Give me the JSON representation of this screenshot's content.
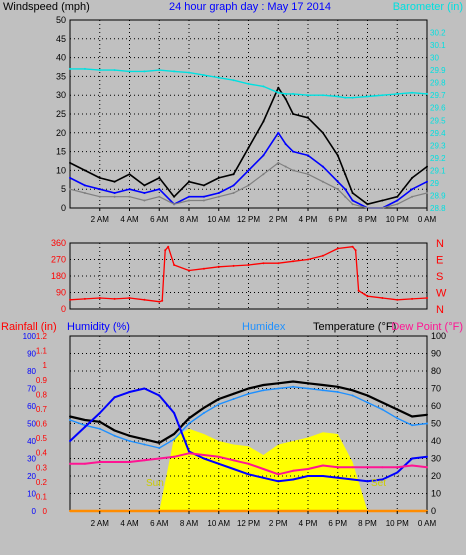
{
  "colors": {
    "background": "#c0c0c0",
    "plot_bg": "#c0c0c0",
    "grid": "#000000",
    "wind_speed": "#000000",
    "wind_avg": "#0000ff",
    "wind_gray": "#808080",
    "barometer": "#00e0e0",
    "direction": "#ff0000",
    "rainfall": "#ff0000",
    "humidity": "#0000ff",
    "humidex": "#1e90ff",
    "temperature": "#000000",
    "dew_point": "#ff1493",
    "solar": "#ffff00",
    "sun_label": "#cccc00",
    "bottom_rain_line": "#ff8c00"
  },
  "chart_data": [
    {
      "type": "line",
      "id": "wind",
      "title": "24 hour graph day : May 17 2014",
      "left_label": "Windspeed (mph)",
      "right_label": "Barometer (in)",
      "ylim": [
        0,
        50
      ],
      "y_ticks": [
        "0",
        "5",
        "10",
        "15",
        "20",
        "25",
        "30",
        "35",
        "40",
        "45",
        "50"
      ],
      "y2lim": [
        28.8,
        30.3
      ],
      "y2_ticks": [
        "28.8",
        "28.9",
        "29",
        "29.1",
        "29.2",
        "29.3",
        "29.4",
        "29.5",
        "29.6",
        "29.7",
        "29.8",
        "29.9",
        "30",
        "30.1",
        "30.2"
      ],
      "x_ticks": [
        "2 AM",
        "4 AM",
        "6 AM",
        "8 AM",
        "10 AM",
        "12 PM",
        "2 PM",
        "4 PM",
        "6 PM",
        "8 PM",
        "10 PM",
        "0 AM"
      ],
      "x": [
        0,
        1,
        2,
        3,
        4,
        5,
        6,
        7,
        8,
        9,
        10,
        11,
        12,
        13,
        14,
        14.5,
        15,
        16,
        17,
        18,
        18.5,
        19,
        20,
        21,
        22,
        23,
        24
      ],
      "series": [
        {
          "key": "gust",
          "values": [
            12,
            10,
            8,
            7,
            9,
            6,
            8,
            3,
            7,
            6,
            8,
            9,
            16,
            23,
            32,
            29,
            25,
            24,
            20,
            14,
            9,
            4,
            1,
            2,
            3,
            8,
            11
          ]
        },
        {
          "key": "average",
          "values": [
            8,
            6,
            5,
            4,
            5,
            4,
            5,
            1,
            3,
            3,
            4,
            6,
            10,
            14,
            20,
            17,
            15,
            14,
            11,
            7,
            5,
            2,
            0,
            0,
            2,
            5,
            7
          ]
        },
        {
          "key": "gray",
          "values": [
            5,
            4,
            3,
            3,
            3,
            2,
            3,
            1,
            2,
            2,
            3,
            4,
            6,
            9,
            12,
            11,
            10,
            9,
            7,
            5,
            3,
            1,
            0,
            0,
            1,
            3,
            4
          ]
        },
        {
          "key": "barometer",
          "axis": "y2",
          "values": [
            29.91,
            29.91,
            29.9,
            29.9,
            29.89,
            29.89,
            29.9,
            29.89,
            29.88,
            29.86,
            29.84,
            29.82,
            29.79,
            29.77,
            29.72,
            29.71,
            29.71,
            29.7,
            29.7,
            29.69,
            29.68,
            29.68,
            29.69,
            29.7,
            29.71,
            29.72,
            29.71
          ]
        }
      ]
    },
    {
      "type": "line",
      "id": "direction",
      "ylim": [
        0,
        360
      ],
      "y_ticks": [
        "0",
        "90",
        "180",
        "270",
        "360"
      ],
      "compass_labels": [
        "N",
        "E",
        "S",
        "W",
        "N"
      ],
      "x": [
        0,
        1,
        2,
        3,
        4,
        5,
        6,
        6.2,
        6.4,
        6.6,
        7,
        8,
        9,
        10,
        11,
        12,
        13,
        14,
        15,
        16,
        17,
        18,
        19,
        19.2,
        19.4,
        19.8,
        20,
        21,
        22,
        23,
        24
      ],
      "series": [
        {
          "key": "direction",
          "values": [
            50,
            55,
            60,
            55,
            60,
            50,
            40,
            45,
            320,
            340,
            240,
            210,
            220,
            230,
            235,
            240,
            250,
            250,
            260,
            270,
            290,
            330,
            340,
            320,
            100,
            80,
            70,
            60,
            50,
            55,
            60
          ]
        }
      ]
    },
    {
      "type": "line",
      "id": "temperature",
      "labels": {
        "rainfall": "Rainfall (in)",
        "humidity": "Humidity (%)",
        "humidex": "Humidex",
        "temperature": "Temperature (°F)",
        "dew_point": "Dew Point (°F)",
        "sunrise": "Sun",
        "sunset": "Set"
      },
      "rain_lim": [
        0,
        1.2
      ],
      "rain_ticks": [
        "0",
        "0.1",
        "0.2",
        "0.3",
        "0.4",
        "0.5",
        "0.6",
        "0.7",
        "0.8",
        "0.9",
        "1",
        "1.1",
        "1.2"
      ],
      "humidity_lim": [
        0,
        100
      ],
      "humidity_ticks": [
        "0",
        "10",
        "20",
        "30",
        "40",
        "50",
        "60",
        "70",
        "80",
        "90",
        "100"
      ],
      "temp_lim": [
        0,
        100
      ],
      "temp_ticks": [
        "0",
        "10",
        "20",
        "30",
        "40",
        "50",
        "60",
        "70",
        "80",
        "90",
        "100"
      ],
      "x_ticks": [
        "2 AM",
        "4 AM",
        "6 AM",
        "8 AM",
        "10 AM",
        "12 PM",
        "2 PM",
        "4 PM",
        "6 PM",
        "8 PM",
        "10 PM",
        "0 AM"
      ],
      "x": [
        0,
        1,
        2,
        3,
        4,
        5,
        6,
        7,
        8,
        9,
        10,
        11,
        12,
        13,
        14,
        15,
        16,
        17,
        18,
        19,
        20,
        21,
        22,
        23,
        24
      ],
      "series": [
        {
          "key": "temperature",
          "values": [
            54,
            52,
            51,
            46,
            43,
            41,
            39,
            44,
            53,
            59,
            64,
            67,
            70,
            72,
            73,
            74,
            73,
            72,
            71,
            69,
            66,
            62,
            58,
            54,
            55
          ]
        },
        {
          "key": "humidex",
          "values": [
            52,
            49,
            47,
            43,
            40,
            38,
            36,
            41,
            50,
            56,
            61,
            64,
            67,
            69,
            70,
            71,
            70,
            69,
            68,
            66,
            62,
            58,
            53,
            49,
            50
          ]
        },
        {
          "key": "humidity",
          "values": [
            40,
            48,
            56,
            65,
            68,
            70,
            66,
            56,
            34,
            30,
            27,
            24,
            21,
            19,
            17,
            18,
            20,
            20,
            19,
            18,
            17,
            18,
            22,
            30,
            31
          ]
        },
        {
          "key": "dew_point",
          "values": [
            27,
            27,
            28,
            28,
            28,
            29,
            30,
            31,
            33,
            32,
            31,
            29,
            27,
            24,
            21,
            23,
            24,
            26,
            25,
            25,
            25,
            25,
            25,
            26,
            25
          ]
        },
        {
          "key": "solar",
          "values": [
            0,
            0,
            0,
            0,
            0,
            0,
            0,
            42,
            47,
            44,
            40,
            38,
            37,
            32,
            38,
            40,
            42,
            45,
            44,
            28,
            0,
            0,
            0,
            0,
            0
          ]
        },
        {
          "key": "rainfall",
          "values": [
            0,
            0,
            0,
            0,
            0,
            0,
            0,
            0,
            0,
            0,
            0,
            0,
            0,
            0,
            0,
            0,
            0,
            0,
            0,
            0,
            0,
            0,
            0,
            0,
            0
          ]
        }
      ]
    }
  ]
}
